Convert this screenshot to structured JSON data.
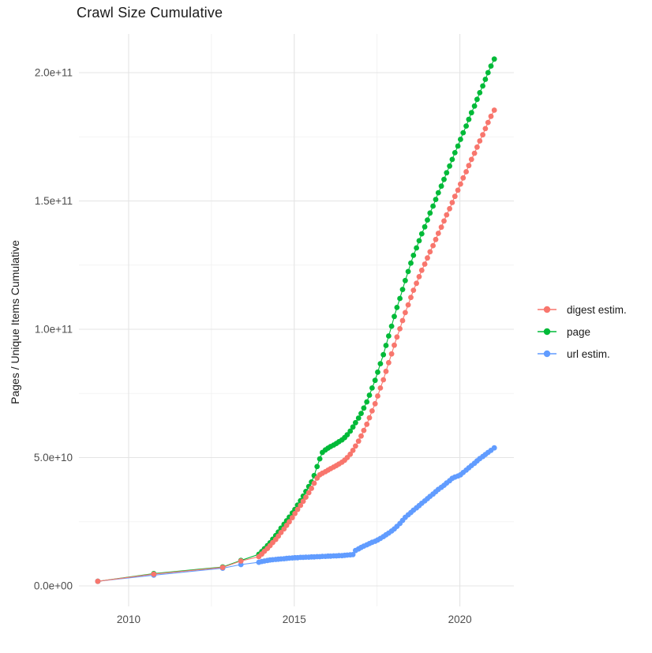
{
  "chart": {
    "title": "Crawl Size Cumulative",
    "y_axis_title": "Pages / Unique Items Cumulative",
    "x_ticks": {
      "major": [
        {
          "value": 2010,
          "label": "2010"
        },
        {
          "value": 2015,
          "label": "2015"
        },
        {
          "value": 2020,
          "label": "2020"
        }
      ],
      "minor": [
        2012.5,
        2017.5
      ]
    },
    "y_ticks": {
      "major": [
        {
          "value": 0,
          "label": "0.0e+00"
        },
        {
          "value": 50,
          "label": "5.0e+10"
        },
        {
          "value": 100,
          "label": "1.0e+11"
        },
        {
          "value": 150,
          "label": "1.5e+11"
        },
        {
          "value": 200,
          "label": "2.0e+11"
        }
      ],
      "minor": [
        25,
        75,
        125,
        175
      ]
    }
  },
  "legend": {
    "items": [
      {
        "label": "digest estim.",
        "color": "#F8766D",
        "icon": "line-dot-key"
      },
      {
        "label": "page",
        "color": "#00BA38",
        "icon": "line-dot-key"
      },
      {
        "label": "url estim.",
        "color": "#619CFF",
        "icon": "line-dot-key"
      }
    ]
  },
  "chart_data": {
    "type": "line",
    "marker": "point",
    "title": "Crawl Size Cumulative",
    "xlabel": "",
    "ylabel": "Pages / Unique Items Cumulative",
    "x_unit": "year (decimal)",
    "y_unit": "items, in billions (1e9)",
    "x_range": [
      2008.5,
      2021.63
    ],
    "y_range": [
      -8,
      215.08
    ],
    "grid": true,
    "legend_position": "right-middle",
    "series": [
      {
        "name": "digest estim.",
        "color": "#F8766D",
        "x": [
          2009.07,
          2010.76,
          2012.84,
          2013.39,
          2013.93,
          2014.02,
          2014.1,
          2014.19,
          2014.27,
          2014.35,
          2014.44,
          2014.52,
          2014.6,
          2014.69,
          2014.77,
          2014.85,
          2014.94,
          2015.02,
          2015.1,
          2015.19,
          2015.27,
          2015.35,
          2015.44,
          2015.52,
          2015.6,
          2015.69,
          2015.77,
          2015.85,
          2015.94,
          2016.02,
          2016.1,
          2016.19,
          2016.27,
          2016.35,
          2016.44,
          2016.52,
          2016.6,
          2016.69,
          2016.77,
          2016.85,
          2016.94,
          2017.02,
          2017.1,
          2017.19,
          2017.27,
          2017.35,
          2017.44,
          2017.52,
          2017.6,
          2017.69,
          2017.77,
          2017.85,
          2017.94,
          2018.02,
          2018.1,
          2018.19,
          2018.27,
          2018.35,
          2018.44,
          2018.52,
          2018.6,
          2018.69,
          2018.77,
          2018.85,
          2018.94,
          2019.02,
          2019.1,
          2019.19,
          2019.27,
          2019.35,
          2019.44,
          2019.52,
          2019.6,
          2019.69,
          2019.77,
          2019.85,
          2019.94,
          2020.02,
          2020.1,
          2020.19,
          2020.27,
          2020.35,
          2020.44,
          2020.52,
          2020.6,
          2020.69,
          2020.77,
          2020.85,
          2020.94,
          2021.04
        ],
        "y": [
          1.8,
          4.6,
          7.2,
          9.7,
          11.4,
          12.4,
          13.5,
          14.6,
          15.7,
          16.9,
          18.1,
          19.4,
          20.8,
          22.2,
          23.6,
          25,
          26.6,
          28.2,
          29.8,
          31.4,
          33,
          34.6,
          36.3,
          38,
          40,
          42,
          43.3,
          43.9,
          44.5,
          45.1,
          45.7,
          46.3,
          46.9,
          47.5,
          48.2,
          49,
          50,
          51.3,
          52.8,
          54.5,
          56.4,
          58.4,
          60.6,
          63,
          65.5,
          68.2,
          71,
          74,
          77.1,
          80.3,
          83.6,
          87,
          90.4,
          93.8,
          97,
          100.2,
          103.4,
          106.5,
          109.5,
          112.4,
          115.2,
          117.9,
          120.5,
          123,
          125.4,
          127.8,
          130.2,
          132.6,
          135,
          137.4,
          139.8,
          142.2,
          144.6,
          147,
          149.4,
          151.8,
          154.2,
          156.6,
          159,
          161.4,
          163.8,
          166.2,
          168.6,
          171,
          173.4,
          175.8,
          178.2,
          180.6,
          183,
          185.4
        ]
      },
      {
        "name": "page",
        "color": "#00BA38",
        "x": [
          2009.07,
          2010.76,
          2012.84,
          2013.39,
          2013.93,
          2014.02,
          2014.1,
          2014.19,
          2014.27,
          2014.35,
          2014.44,
          2014.52,
          2014.6,
          2014.69,
          2014.77,
          2014.85,
          2014.94,
          2015.02,
          2015.1,
          2015.19,
          2015.27,
          2015.35,
          2015.44,
          2015.52,
          2015.6,
          2015.69,
          2015.77,
          2015.85,
          2015.94,
          2016.02,
          2016.1,
          2016.19,
          2016.27,
          2016.35,
          2016.44,
          2016.52,
          2016.6,
          2016.69,
          2016.77,
          2016.85,
          2016.94,
          2017.02,
          2017.1,
          2017.19,
          2017.27,
          2017.35,
          2017.44,
          2017.52,
          2017.6,
          2017.69,
          2017.77,
          2017.85,
          2017.94,
          2018.02,
          2018.1,
          2018.19,
          2018.27,
          2018.35,
          2018.44,
          2018.52,
          2018.6,
          2018.69,
          2018.77,
          2018.85,
          2018.94,
          2019.02,
          2019.1,
          2019.19,
          2019.27,
          2019.35,
          2019.44,
          2019.52,
          2019.6,
          2019.69,
          2019.77,
          2019.85,
          2019.94,
          2020.02,
          2020.1,
          2020.19,
          2020.27,
          2020.35,
          2020.44,
          2020.52,
          2020.6,
          2020.69,
          2020.77,
          2020.85,
          2020.94,
          2021.04
        ],
        "y": [
          1.8,
          4.8,
          7.4,
          9.9,
          12.3,
          13.4,
          14.5,
          15.7,
          16.8,
          18.2,
          19.6,
          21,
          22.5,
          24,
          25.4,
          26.8,
          28.4,
          29.8,
          31.5,
          33.2,
          35,
          36.8,
          38.7,
          40.5,
          43,
          46.5,
          49.5,
          52,
          53,
          53.7,
          54.3,
          54.9,
          55.5,
          56.2,
          56.9,
          57.8,
          58.9,
          60.3,
          61.9,
          63.6,
          65.4,
          67.2,
          69.3,
          71.7,
          74.3,
          77.1,
          80.1,
          83.3,
          86.6,
          90.1,
          93.7,
          97.4,
          101.2,
          105,
          108.5,
          112,
          115.5,
          119,
          122.5,
          125.8,
          128.8,
          131.7,
          134.5,
          137.2,
          139.9,
          142.6,
          145.3,
          148,
          150.6,
          153.2,
          155.8,
          158.4,
          161,
          163.6,
          166.2,
          168.8,
          171.4,
          174,
          176.6,
          179.2,
          181.8,
          184.4,
          187,
          189.6,
          192.2,
          194.8,
          197.4,
          200,
          202.6,
          205.3
        ]
      },
      {
        "name": "url estim.",
        "color": "#619CFF",
        "x": [
          2009.07,
          2010.76,
          2012.84,
          2013.39,
          2013.93,
          2014.02,
          2014.1,
          2014.19,
          2014.27,
          2014.35,
          2014.44,
          2014.52,
          2014.6,
          2014.69,
          2014.77,
          2014.85,
          2014.94,
          2015.02,
          2015.1,
          2015.19,
          2015.27,
          2015.35,
          2015.44,
          2015.52,
          2015.6,
          2015.69,
          2015.77,
          2015.85,
          2015.94,
          2016.02,
          2016.1,
          2016.19,
          2016.27,
          2016.35,
          2016.44,
          2016.52,
          2016.6,
          2016.69,
          2016.77,
          2016.85,
          2016.94,
          2017.02,
          2017.1,
          2017.19,
          2017.27,
          2017.35,
          2017.44,
          2017.52,
          2017.6,
          2017.69,
          2017.77,
          2017.85,
          2017.94,
          2018.02,
          2018.1,
          2018.19,
          2018.27,
          2018.35,
          2018.44,
          2018.52,
          2018.6,
          2018.69,
          2018.77,
          2018.85,
          2018.94,
          2019.02,
          2019.1,
          2019.19,
          2019.27,
          2019.35,
          2019.44,
          2019.52,
          2019.6,
          2019.69,
          2019.77,
          2019.85,
          2019.94,
          2020.02,
          2020.1,
          2020.19,
          2020.27,
          2020.35,
          2020.44,
          2020.52,
          2020.6,
          2020.69,
          2020.77,
          2020.85,
          2020.94,
          2021.04
        ],
        "y": [
          1.8,
          4.2,
          6.9,
          8.3,
          9.2,
          9.5,
          9.7,
          9.9,
          10.1,
          10.2,
          10.3,
          10.4,
          10.5,
          10.6,
          10.7,
          10.8,
          10.9,
          11,
          11,
          11.1,
          11.1,
          11.2,
          11.2,
          11.3,
          11.3,
          11.4,
          11.4,
          11.5,
          11.5,
          11.6,
          11.6,
          11.7,
          11.7,
          11.8,
          11.8,
          11.9,
          12,
          12.1,
          12.2,
          13.8,
          14.4,
          15,
          15.5,
          16,
          16.5,
          17,
          17.4,
          17.9,
          18.5,
          19.2,
          19.9,
          20.6,
          21.4,
          22.2,
          23.2,
          24.3,
          25.5,
          26.7,
          27.7,
          28.6,
          29.5,
          30.4,
          31.3,
          32.2,
          33.1,
          34,
          34.9,
          35.8,
          36.7,
          37.6,
          38.4,
          39.2,
          40.1,
          41,
          41.9,
          42.4,
          42.8,
          43.3,
          44.2,
          45.1,
          46,
          46.9,
          47.8,
          48.7,
          49.6,
          50.4,
          51.2,
          52,
          52.8,
          53.8
        ]
      }
    ]
  }
}
